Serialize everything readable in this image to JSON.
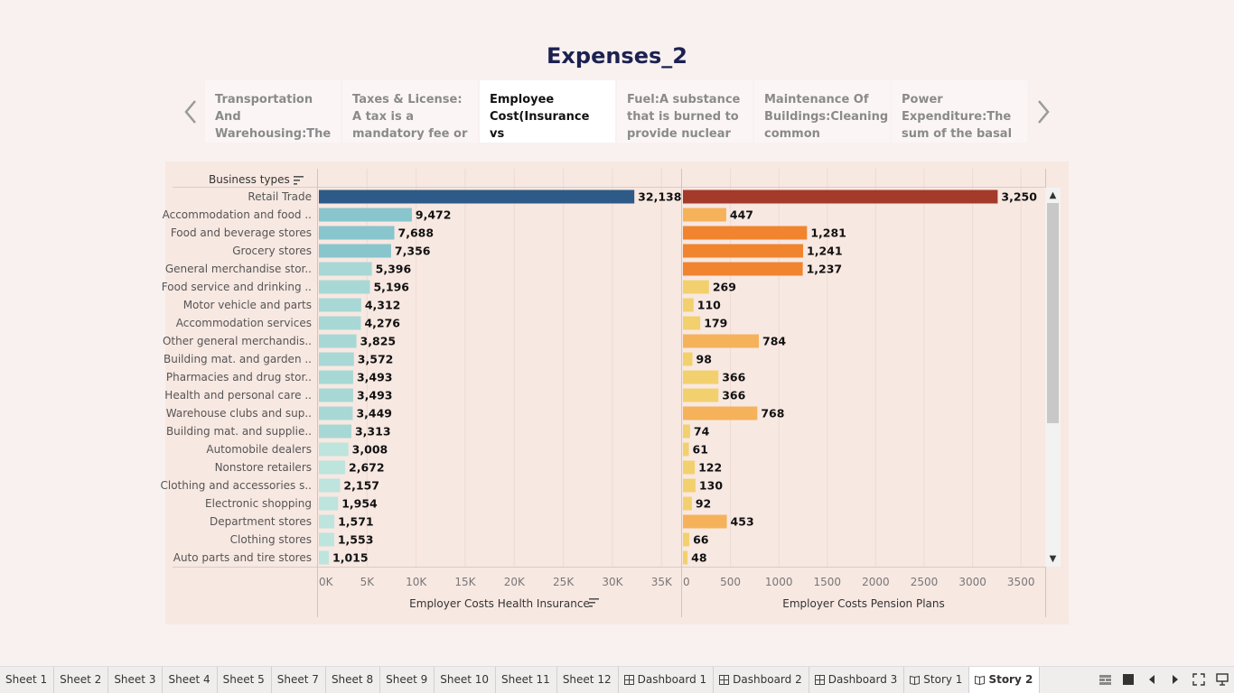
{
  "story": {
    "title": "Expenses_2",
    "points": [
      "Transportation And Warehousing:The transportation and",
      "Taxes & License: A tax is a mandatory fee or financial",
      "Employee Cost(Insurance vs pension):employee",
      "Fuel:A substance that is burned to provide nuclear",
      "Maintenance Of Buildings:Cleaning common",
      "Power Expenditure:The sum of the basal"
    ],
    "active_point": 2
  },
  "header": {
    "business_types_label": "Business types"
  },
  "chart_data": {
    "type": "bar",
    "categories": [
      "Retail Trade",
      "Accommodation and food ..",
      "Food and beverage stores",
      "Grocery stores",
      "General merchandise stor..",
      "Food service and drinking ..",
      "Motor vehicle and parts",
      "Accommodation services",
      "Other general merchandis..",
      "Building mat. and garden ..",
      "Pharmacies and drug stor..",
      "Health and personal care ..",
      "Warehouse clubs and sup..",
      "Building mat. and supplie..",
      "Automobile dealers",
      "Nonstore retailers",
      "Clothing and accessories s..",
      "Electronic shopping",
      "Department stores",
      "Clothing stores",
      "Auto parts and tire stores"
    ],
    "series": [
      {
        "name": "Employer Costs Health Insurance",
        "values": [
          32138,
          9472,
          7688,
          7356,
          5396,
          5196,
          4312,
          4276,
          3825,
          3572,
          3493,
          3493,
          3449,
          3313,
          3008,
          2672,
          2157,
          1954,
          1571,
          1553,
          1015
        ],
        "labels": [
          "32,138",
          "9,472",
          "7,688",
          "7,356",
          "5,396",
          "5,196",
          "4,312",
          "4,276",
          "3,825",
          "3,572",
          "3,493",
          "3,493",
          "3,449",
          "3,313",
          "3,008",
          "2,672",
          "2,157",
          "1,954",
          "1,571",
          "1,553",
          "1,015"
        ],
        "xlim": [
          0,
          37000
        ],
        "ticks": [
          0,
          5000,
          10000,
          15000,
          20000,
          25000,
          30000,
          35000
        ],
        "tick_labels": [
          "0K",
          "5K",
          "10K",
          "15K",
          "20K",
          "25K",
          "30K",
          "35K"
        ],
        "colors": [
          "#2d5a87",
          "#88c5cc",
          "#88c5cc",
          "#88c5cc",
          "#a7d8d5",
          "#a7d8d5",
          "#a7d8d5",
          "#a7d8d5",
          "#a7d8d5",
          "#a7d8d5",
          "#a7d8d5",
          "#a7d8d5",
          "#a7d8d5",
          "#a7d8d5",
          "#bde4dd",
          "#bde4dd",
          "#bde4dd",
          "#bde4dd",
          "#bde4dd",
          "#bde4dd",
          "#bde4dd"
        ]
      },
      {
        "name": "Employer Costs Pension Plans",
        "values": [
          3250,
          447,
          1281,
          1241,
          1237,
          269,
          110,
          179,
          784,
          98,
          366,
          366,
          768,
          74,
          61,
          122,
          130,
          92,
          453,
          66,
          48
        ],
        "labels": [
          "3,250",
          "447",
          "1,281",
          "1,241",
          "1,237",
          "269",
          "110",
          "179",
          "784",
          "98",
          "366",
          "366",
          "768",
          "74",
          "61",
          "122",
          "130",
          "92",
          "453",
          "66",
          "48"
        ],
        "xlim": [
          0,
          3750
        ],
        "ticks": [
          0,
          500,
          1000,
          1500,
          2000,
          2500,
          3000,
          3500
        ],
        "tick_labels": [
          "0",
          "500",
          "1000",
          "1500",
          "2000",
          "2500",
          "3000",
          "3500"
        ],
        "colors": [
          "#a33a2a",
          "#f5b25a",
          "#f1842f",
          "#f1842f",
          "#f1842f",
          "#f3d06e",
          "#f3d06e",
          "#f3d06e",
          "#f5b25a",
          "#f3d06e",
          "#f3d06e",
          "#f3d06e",
          "#f5b25a",
          "#f3d06e",
          "#f3d06e",
          "#f3d06e",
          "#f3d06e",
          "#f3d06e",
          "#f5b25a",
          "#f3d06e",
          "#f3d06e"
        ]
      }
    ]
  },
  "tabs": [
    {
      "label": "Sheet 1",
      "icon": ""
    },
    {
      "label": "Sheet 2",
      "icon": ""
    },
    {
      "label": "Sheet 3",
      "icon": ""
    },
    {
      "label": "Sheet 4",
      "icon": ""
    },
    {
      "label": "Sheet 5",
      "icon": ""
    },
    {
      "label": "Sheet 7",
      "icon": ""
    },
    {
      "label": "Sheet 8",
      "icon": ""
    },
    {
      "label": "Sheet 9",
      "icon": ""
    },
    {
      "label": "Sheet 10",
      "icon": ""
    },
    {
      "label": "Sheet 11",
      "icon": ""
    },
    {
      "label": "Sheet 12",
      "icon": ""
    },
    {
      "label": "Dashboard 1",
      "icon": "dashboard-icon"
    },
    {
      "label": "Dashboard 2",
      "icon": "dashboard-icon"
    },
    {
      "label": "Dashboard 3",
      "icon": "dashboard-icon"
    },
    {
      "label": "Story 1",
      "icon": "story-icon"
    },
    {
      "label": "Story 2",
      "icon": "story-icon"
    }
  ],
  "active_tab": 15,
  "bottom_controls": [
    "show-sheet-sorter-icon",
    "show-filmstrip-icon",
    "prev-sheet-icon",
    "next-sheet-icon",
    "fit-icon",
    "presentation-mode-icon"
  ]
}
